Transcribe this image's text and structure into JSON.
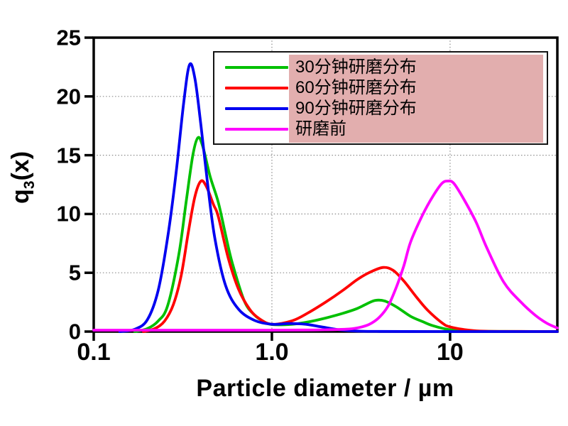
{
  "chart_data": {
    "type": "line",
    "title": "",
    "xlabel": "Particle diameter / µm",
    "ylabel": {
      "base": "q",
      "sub": "3",
      "suffix": "(x)"
    },
    "x_scale": "log",
    "xlim": [
      0.1,
      40
    ],
    "ylim": [
      0,
      25
    ],
    "x_ticks": [
      {
        "v": 0.1,
        "label": "0.1"
      },
      {
        "v": 1.0,
        "label": "1.0"
      },
      {
        "v": 10,
        "label": "10"
      }
    ],
    "y_ticks": [
      {
        "v": 0,
        "label": "0"
      },
      {
        "v": 5,
        "label": "5"
      },
      {
        "v": 10,
        "label": "10"
      },
      {
        "v": 15,
        "label": "15"
      },
      {
        "v": 20,
        "label": "20"
      },
      {
        "v": 25,
        "label": "25"
      }
    ],
    "grid": {
      "x_lines": [
        1,
        10
      ],
      "y_lines": [
        5,
        10,
        15,
        20
      ],
      "style": "dotted",
      "color": "#8c8c8c"
    },
    "frame_color": "#000000",
    "series": [
      {
        "name": "30分钟研磨分布",
        "color": "#00c000",
        "points": [
          [
            0.17,
            0
          ],
          [
            0.2,
            0.25
          ],
          [
            0.23,
            0.9
          ],
          [
            0.26,
            2.2
          ],
          [
            0.3,
            6.5
          ],
          [
            0.33,
            11.0
          ],
          [
            0.36,
            15.0
          ],
          [
            0.385,
            16.5
          ],
          [
            0.41,
            15.7
          ],
          [
            0.45,
            13.2
          ],
          [
            0.5,
            11.0
          ],
          [
            0.55,
            8.2
          ],
          [
            0.6,
            5.8
          ],
          [
            0.7,
            2.6
          ],
          [
            0.8,
            1.4
          ],
          [
            0.9,
            0.85
          ],
          [
            1.0,
            0.6
          ],
          [
            1.3,
            0.62
          ],
          [
            1.6,
            0.82
          ],
          [
            2.0,
            1.15
          ],
          [
            2.5,
            1.55
          ],
          [
            3.0,
            1.95
          ],
          [
            3.4,
            2.35
          ],
          [
            3.8,
            2.65
          ],
          [
            4.3,
            2.6
          ],
          [
            5.0,
            2.1
          ],
          [
            6.0,
            1.3
          ],
          [
            7.0,
            0.85
          ],
          [
            8.0,
            0.5
          ],
          [
            10.0,
            0.15
          ],
          [
            13.0,
            0.04
          ],
          [
            20.0,
            0.01
          ],
          [
            40.0,
            0
          ]
        ]
      },
      {
        "name": "60分钟研磨分布",
        "color": "#ff0000",
        "points": [
          [
            0.19,
            0
          ],
          [
            0.22,
            0.25
          ],
          [
            0.25,
            0.9
          ],
          [
            0.28,
            2.3
          ],
          [
            0.31,
            4.8
          ],
          [
            0.34,
            8.5
          ],
          [
            0.37,
            11.5
          ],
          [
            0.4,
            12.8
          ],
          [
            0.43,
            12.3
          ],
          [
            0.47,
            10.8
          ],
          [
            0.5,
            9.8
          ],
          [
            0.57,
            6.2
          ],
          [
            0.65,
            3.6
          ],
          [
            0.75,
            1.9
          ],
          [
            0.85,
            1.1
          ],
          [
            1.0,
            0.62
          ],
          [
            1.3,
            0.92
          ],
          [
            1.6,
            1.6
          ],
          [
            2.0,
            2.5
          ],
          [
            2.5,
            3.5
          ],
          [
            3.0,
            4.4
          ],
          [
            3.5,
            5.0
          ],
          [
            4.2,
            5.45
          ],
          [
            4.8,
            5.2
          ],
          [
            5.5,
            4.3
          ],
          [
            6.5,
            2.9
          ],
          [
            7.5,
            1.8
          ],
          [
            9.0,
            0.75
          ],
          [
            10.0,
            0.4
          ],
          [
            13.0,
            0.1
          ],
          [
            16.0,
            0.03
          ],
          [
            25.0,
            0.01
          ],
          [
            40.0,
            0
          ]
        ]
      },
      {
        "name": "90分钟研磨分布",
        "color": "#0000f0",
        "points": [
          [
            0.14,
            0
          ],
          [
            0.17,
            0.2
          ],
          [
            0.2,
            1.0
          ],
          [
            0.23,
            3.5
          ],
          [
            0.26,
            8.0
          ],
          [
            0.29,
            13.5
          ],
          [
            0.32,
            19.5
          ],
          [
            0.345,
            22.7
          ],
          [
            0.37,
            21.5
          ],
          [
            0.4,
            17.5
          ],
          [
            0.44,
            12.0
          ],
          [
            0.48,
            7.8
          ],
          [
            0.55,
            3.9
          ],
          [
            0.65,
            1.9
          ],
          [
            0.8,
            0.95
          ],
          [
            1.0,
            0.62
          ],
          [
            1.25,
            0.68
          ],
          [
            1.55,
            0.62
          ],
          [
            1.9,
            0.4
          ],
          [
            2.4,
            0.15
          ],
          [
            3.0,
            0.04
          ],
          [
            4.0,
            0.01
          ],
          [
            8.0,
            0
          ],
          [
            15.0,
            0
          ],
          [
            40.0,
            0
          ]
        ]
      },
      {
        "name": "研磨前",
        "color": "#ff00ff",
        "points": [
          [
            0.1,
            0.12
          ],
          [
            0.5,
            0.12
          ],
          [
            1.0,
            0.12
          ],
          [
            1.5,
            0.13
          ],
          [
            2.0,
            0.15
          ],
          [
            2.6,
            0.2
          ],
          [
            3.0,
            0.3
          ],
          [
            3.5,
            0.6
          ],
          [
            4.0,
            1.2
          ],
          [
            4.5,
            2.2
          ],
          [
            5.0,
            3.8
          ],
          [
            5.5,
            5.6
          ],
          [
            6.0,
            7.6
          ],
          [
            7.0,
            9.9
          ],
          [
            8.0,
            11.5
          ],
          [
            9.0,
            12.6
          ],
          [
            9.7,
            12.8
          ],
          [
            10.5,
            12.6
          ],
          [
            12.0,
            11.2
          ],
          [
            14.0,
            9.3
          ],
          [
            16.0,
            7.2
          ],
          [
            20.0,
            4.2
          ],
          [
            25.0,
            2.5
          ],
          [
            30.0,
            1.4
          ],
          [
            35.0,
            0.7
          ],
          [
            40.0,
            0.3
          ]
        ]
      }
    ],
    "legend": {
      "position": "top-right",
      "background": "#ffffff",
      "border_color": "#141414",
      "highlight_color": "#e2aeae"
    }
  }
}
